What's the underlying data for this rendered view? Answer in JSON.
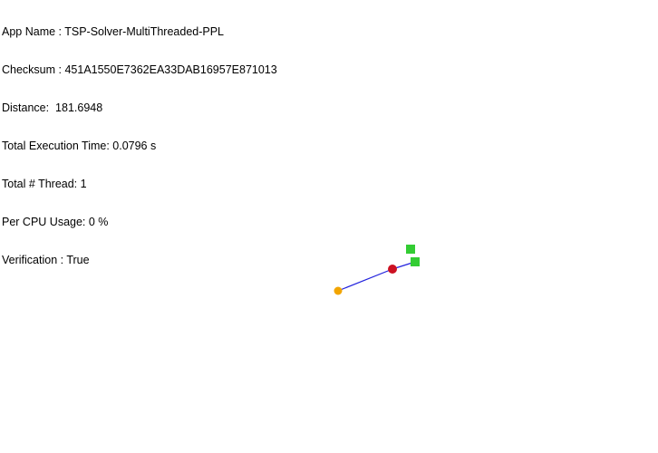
{
  "info": {
    "lines": [
      "App Name : TSP-Solver-MultiThreaded-PPL",
      "Checksum : 451A1550E7362EA33DAB16957E871013",
      "Distance:  181.6948",
      "Total Execution Time: 0.0796 s",
      "Total # Thread: 1",
      "Per CPU Usage: 0 %",
      "Verification : True"
    ]
  },
  "visualization": {
    "route_color": "#2222dd",
    "start_node_color": "#f2a500",
    "current_node_color": "#cc1122",
    "city_marker_color": "#33cc33",
    "icons": [
      "start-node-marker",
      "current-node-marker",
      "city-marker-square"
    ]
  }
}
